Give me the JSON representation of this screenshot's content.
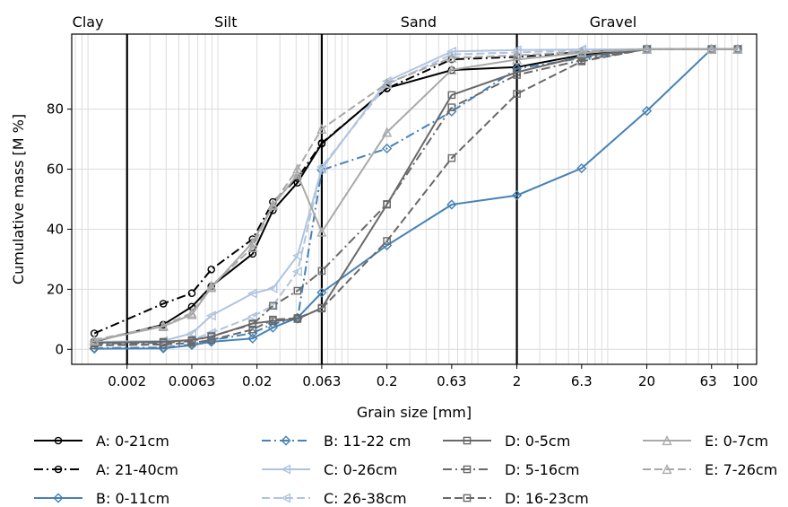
{
  "chart_data": {
    "type": "line",
    "xlabel": "Grain size [mm]",
    "ylabel": "Cumulative mass [M %]",
    "xscale": "log",
    "ylim": [
      -5,
      105
    ],
    "grid": true,
    "legend_placement": "bottom",
    "x_ticks": [
      {
        "value": 0.002,
        "label": "0.002"
      },
      {
        "value": 0.0063,
        "label": "0.0063"
      },
      {
        "value": 0.02,
        "label": "0.02"
      },
      {
        "value": 0.063,
        "label": "0.063"
      },
      {
        "value": 0.2,
        "label": "0.2"
      },
      {
        "value": 0.63,
        "label": "0.63"
      },
      {
        "value": 2,
        "label": "2"
      },
      {
        "value": 6.3,
        "label": "6.3"
      },
      {
        "value": 20,
        "label": "20"
      },
      {
        "value": 63,
        "label": "63"
      },
      {
        "value": 100,
        "label": "100"
      }
    ],
    "y_ticks": [
      0,
      20,
      40,
      60,
      80
    ],
    "regions": [
      {
        "label": "Clay",
        "x": 0.001
      },
      {
        "label": "Silt",
        "x": 0.0115
      },
      {
        "label": "Sand",
        "x": 0.35
      },
      {
        "label": "Gravel",
        "x": 11
      }
    ],
    "boundaries": [
      0.002,
      0.063,
      2
    ],
    "series": [
      {
        "name": "A: 0-21cm",
        "color": "#000000",
        "dash": "solid",
        "marker": "circle",
        "x": [
          0.00112,
          0.0038,
          0.0063,
          0.0089,
          0.0185,
          0.0265,
          0.041,
          0.063,
          0.2,
          0.63,
          2,
          6.3,
          20,
          63,
          100
        ],
        "y": [
          2.6,
          8.2,
          14.2,
          21,
          31.8,
          46.3,
          55.5,
          68.5,
          87,
          93,
          94,
          98,
          100,
          100,
          100
        ]
      },
      {
        "name": "A: 21-40cm",
        "color": "#000000",
        "dash": "dashdot",
        "marker": "circle",
        "x": [
          0.00112,
          0.0038,
          0.0063,
          0.0089,
          0.0185,
          0.0265,
          0.041,
          0.063,
          0.2,
          0.63,
          2,
          6.3,
          20,
          63,
          100
        ],
        "y": [
          5.3,
          15.2,
          18.7,
          26.6,
          36.7,
          49.1,
          57,
          68.7,
          86.9,
          96.6,
          97.4,
          99,
          100,
          100,
          100
        ]
      },
      {
        "name": "B: 0-11cm",
        "color": "#4682b4",
        "dash": "solid",
        "marker": "diamond",
        "x": [
          0.00112,
          0.0038,
          0.0063,
          0.0089,
          0.0185,
          0.0265,
          0.041,
          0.063,
          0.2,
          0.63,
          2,
          6.3,
          20,
          63,
          100
        ],
        "y": [
          0.2,
          0.3,
          1.4,
          2.5,
          3.6,
          7.2,
          10.5,
          18.9,
          34.6,
          48.2,
          51.3,
          60.3,
          79.4,
          100,
          100
        ]
      },
      {
        "name": "B: 11-22 cm",
        "color": "#4682b4",
        "dash": "dashdot",
        "marker": "diamond",
        "x": [
          0.00112,
          0.0038,
          0.0063,
          0.0089,
          0.0185,
          0.0265,
          0.041,
          0.063,
          0.2,
          0.63,
          2,
          6.3,
          20,
          63,
          100
        ],
        "y": [
          0.4,
          0.6,
          1.6,
          3,
          5.4,
          8.5,
          10.2,
          59.7,
          66.9,
          79.2,
          93.5,
          97,
          100,
          100,
          100
        ]
      },
      {
        "name": "C: 0-26cm",
        "color": "#b0c4de",
        "dash": "solid",
        "marker": "triangle-left",
        "x": [
          0.00112,
          0.0038,
          0.0063,
          0.0089,
          0.0185,
          0.0265,
          0.041,
          0.063,
          0.2,
          0.63,
          2,
          6.3,
          20,
          63,
          100
        ],
        "y": [
          2.5,
          2.8,
          5.3,
          11.2,
          18.6,
          20.3,
          31.2,
          60.1,
          89.3,
          99.2,
          99.7,
          99.9,
          100,
          100,
          100
        ]
      },
      {
        "name": "C: 26-38cm",
        "color": "#b0c4de",
        "dash": "dashed",
        "marker": "triangle-left",
        "x": [
          0.00112,
          0.0038,
          0.0063,
          0.0089,
          0.0185,
          0.0265,
          0.041,
          0.063,
          0.2,
          0.63,
          2,
          6.3,
          20,
          63,
          100
        ],
        "y": [
          1.8,
          2.1,
          3.2,
          5.5,
          10.9,
          14.6,
          25.9,
          60.8,
          88.2,
          98.2,
          98.9,
          99.6,
          100,
          100,
          100
        ]
      },
      {
        "name": "D: 0-5cm",
        "color": "#696969",
        "dash": "solid",
        "marker": "square",
        "x": [
          0.00112,
          0.0038,
          0.0063,
          0.0089,
          0.0185,
          0.0265,
          0.041,
          0.063,
          0.2,
          0.63,
          2,
          6.3,
          20,
          63,
          100
        ],
        "y": [
          2.2,
          2.5,
          3.1,
          4.2,
          8.6,
          9.4,
          10.1,
          13.8,
          48.2,
          84.7,
          92.3,
          97.6,
          100,
          100,
          100
        ]
      },
      {
        "name": "D: 5-16cm",
        "color": "#696969",
        "dash": "dashdot",
        "marker": "square",
        "x": [
          0.00112,
          0.0038,
          0.0063,
          0.0089,
          0.0185,
          0.0265,
          0.041,
          0.063,
          0.2,
          0.63,
          2,
          6.3,
          20,
          63,
          100
        ],
        "y": [
          1.9,
          2.2,
          2.7,
          4.4,
          8.3,
          14.5,
          19.5,
          26.1,
          48.4,
          80.6,
          91.4,
          96.3,
          100,
          100,
          100
        ]
      },
      {
        "name": "D: 16-23cm",
        "color": "#696969",
        "dash": "dashed",
        "marker": "square",
        "x": [
          0.00112,
          0.0038,
          0.0063,
          0.0089,
          0.0185,
          0.0265,
          0.041,
          0.063,
          0.2,
          0.63,
          2,
          6.3,
          20,
          63,
          100
        ],
        "y": [
          1.3,
          1.6,
          2.1,
          3.1,
          6.6,
          9.9,
          10.4,
          13.6,
          36.1,
          63.7,
          85.1,
          95.9,
          100,
          100,
          100
        ]
      },
      {
        "name": "E: 0-7cm",
        "color": "#a9a9a9",
        "dash": "solid",
        "marker": "triangle-up",
        "x": [
          0.00112,
          0.0038,
          0.0063,
          0.0089,
          0.0185,
          0.0265,
          0.041,
          0.063,
          0.2,
          0.63,
          2,
          6.3,
          20,
          63,
          100
        ],
        "y": [
          2.8,
          7.6,
          11.6,
          20.6,
          35.6,
          47.9,
          58.2,
          39.1,
          72.3,
          93.1,
          96.5,
          98.8,
          100,
          100,
          100
        ]
      },
      {
        "name": "E: 7-26cm",
        "color": "#a9a9a9",
        "dash": "dashed",
        "marker": "triangle-up",
        "x": [
          0.00112,
          0.0038,
          0.0063,
          0.0089,
          0.0185,
          0.0265,
          0.041,
          0.063,
          0.2,
          0.63,
          2,
          6.3,
          20,
          63,
          100
        ],
        "y": [
          3.1,
          7.9,
          12.1,
          21.1,
          33.9,
          48.3,
          60.1,
          73.4,
          88.6,
          97.1,
          97.9,
          99.1,
          100,
          100,
          100
        ]
      }
    ]
  }
}
